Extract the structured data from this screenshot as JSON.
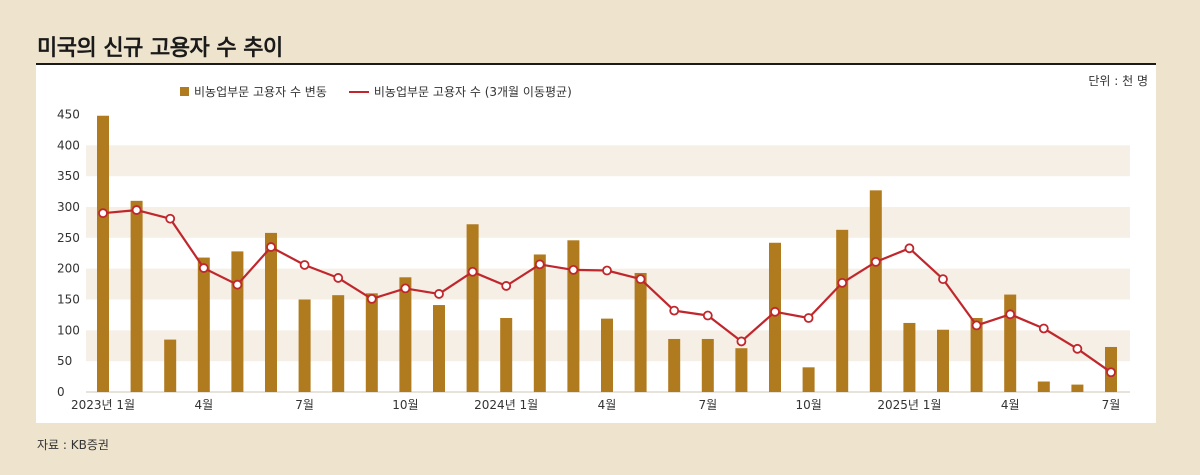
{
  "title": "미국의 신규 고용자 수 추이",
  "unit_label": "단위 : 천 명",
  "source": "자료 : KB증권",
  "colors": {
    "bar": "#b07a1e",
    "line": "#c0272d",
    "band": "#f6efe6",
    "background": "#eee3cd"
  },
  "chart_data": {
    "type": "bar+line",
    "categories": [
      "2023-01",
      "2023-02",
      "2023-03",
      "2023-04",
      "2023-05",
      "2023-06",
      "2023-07",
      "2023-08",
      "2023-09",
      "2023-10",
      "2023-11",
      "2023-12",
      "2024-01",
      "2024-02",
      "2024-03",
      "2024-04",
      "2024-05",
      "2024-06",
      "2024-07",
      "2024-08",
      "2024-09",
      "2024-10",
      "2024-11",
      "2024-12",
      "2025-01",
      "2025-02",
      "2025-03",
      "2025-04",
      "2025-05",
      "2025-06",
      "2025-07"
    ],
    "x_tick_labels": [
      {
        "index": 0,
        "label": "2023년 1월"
      },
      {
        "index": 3,
        "label": "4월"
      },
      {
        "index": 6,
        "label": "7월"
      },
      {
        "index": 9,
        "label": "10월"
      },
      {
        "index": 12,
        "label": "2024년 1월"
      },
      {
        "index": 15,
        "label": "4월"
      },
      {
        "index": 18,
        "label": "7월"
      },
      {
        "index": 21,
        "label": "10월"
      },
      {
        "index": 24,
        "label": "2025년 1월"
      },
      {
        "index": 27,
        "label": "4월"
      },
      {
        "index": 30,
        "label": "7월"
      }
    ],
    "series": [
      {
        "name": "비농업부문 고용자 수 변동",
        "type": "bar",
        "values": [
          448,
          310,
          85,
          218,
          228,
          258,
          150,
          157,
          160,
          186,
          141,
          272,
          120,
          223,
          246,
          119,
          193,
          86,
          86,
          71,
          242,
          40,
          263,
          327,
          112,
          101,
          120,
          158,
          17,
          12,
          73
        ]
      },
      {
        "name": "비농업부문 고용자 수 (3개월 이동평균)",
        "type": "line",
        "values": [
          290,
          295,
          281,
          201,
          174,
          235,
          206,
          185,
          151,
          168,
          159,
          195,
          172,
          207,
          198,
          197,
          183,
          132,
          124,
          82,
          130,
          120,
          177,
          211,
          233,
          183,
          108,
          126,
          103,
          70,
          32
        ]
      }
    ],
    "y_ticks": [
      0,
      50,
      100,
      150,
      200,
      250,
      300,
      350,
      400,
      450
    ],
    "ylim": [
      0,
      450
    ],
    "grid": "alternating horizontal bands",
    "legend_position": "top-left"
  }
}
